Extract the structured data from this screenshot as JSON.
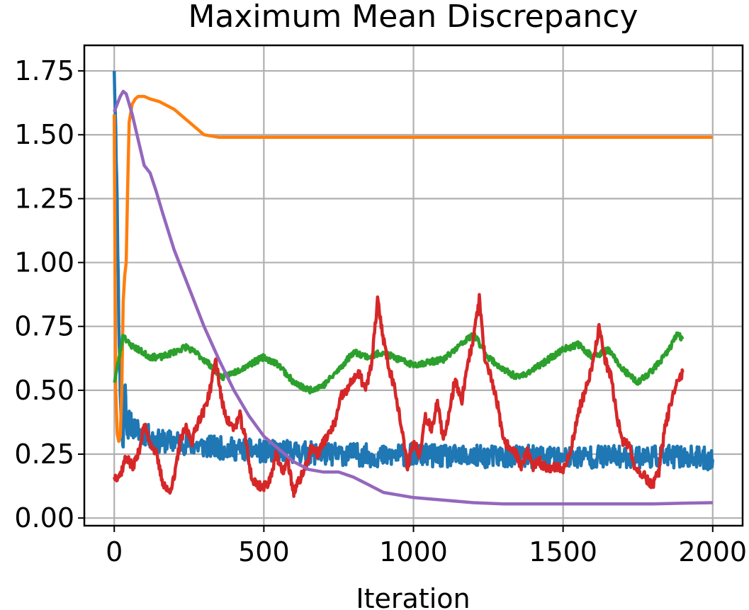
{
  "chart_data": {
    "type": "line",
    "title": "Maximum Mean Discrepancy",
    "xlabel": "Iteration",
    "ylabel": "",
    "xlim": [
      -100,
      2100
    ],
    "ylim": [
      -0.03,
      1.85
    ],
    "xticks": [
      0,
      500,
      1000,
      1500,
      2000
    ],
    "xtick_labels": [
      "0",
      "500",
      "1000",
      "1500",
      "2000"
    ],
    "yticks": [
      0.0,
      0.25,
      0.5,
      0.75,
      1.0,
      1.25,
      1.5,
      1.75
    ],
    "ytick_labels": [
      "0.00",
      "0.25",
      "0.50",
      "0.75",
      "1.00",
      "1.25",
      "1.50",
      "1.75"
    ],
    "grid": true,
    "series": [
      {
        "color": "#1f77b4",
        "noise": 0.045,
        "seed": 11,
        "points": [
          [
            0,
            1.75
          ],
          [
            5,
            1.55
          ],
          [
            10,
            1.2
          ],
          [
            15,
            0.8
          ],
          [
            20,
            0.5
          ],
          [
            25,
            0.32
          ],
          [
            30,
            0.28
          ],
          [
            35,
            0.55
          ],
          [
            40,
            0.4
          ],
          [
            45,
            0.34
          ],
          [
            50,
            0.38
          ],
          [
            60,
            0.36
          ],
          [
            80,
            0.34
          ],
          [
            100,
            0.33
          ],
          [
            150,
            0.3
          ],
          [
            200,
            0.3
          ],
          [
            300,
            0.28
          ],
          [
            400,
            0.27
          ],
          [
            500,
            0.26
          ],
          [
            600,
            0.26
          ],
          [
            700,
            0.25
          ],
          [
            800,
            0.25
          ],
          [
            900,
            0.24
          ],
          [
            1000,
            0.25
          ],
          [
            1100,
            0.24
          ],
          [
            1200,
            0.24
          ],
          [
            1300,
            0.24
          ],
          [
            1400,
            0.24
          ],
          [
            1500,
            0.24
          ],
          [
            1600,
            0.24
          ],
          [
            1700,
            0.24
          ],
          [
            1800,
            0.24
          ],
          [
            1900,
            0.24
          ],
          [
            2000,
            0.23
          ]
        ]
      },
      {
        "color": "#ff7f0e",
        "noise": 0.0,
        "seed": 0,
        "points": [
          [
            0,
            1.58
          ],
          [
            5,
            0.5
          ],
          [
            10,
            0.33
          ],
          [
            15,
            0.3
          ],
          [
            20,
            0.32
          ],
          [
            25,
            0.5
          ],
          [
            30,
            0.85
          ],
          [
            35,
            0.95
          ],
          [
            40,
            1.0
          ],
          [
            45,
            1.3
          ],
          [
            50,
            1.55
          ],
          [
            60,
            1.62
          ],
          [
            70,
            1.64
          ],
          [
            80,
            1.65
          ],
          [
            100,
            1.65
          ],
          [
            120,
            1.64
          ],
          [
            150,
            1.63
          ],
          [
            200,
            1.6
          ],
          [
            250,
            1.55
          ],
          [
            300,
            1.5
          ],
          [
            350,
            1.49
          ],
          [
            500,
            1.49
          ],
          [
            1000,
            1.49
          ],
          [
            1500,
            1.49
          ],
          [
            2000,
            1.49
          ]
        ]
      },
      {
        "color": "#2ca02c",
        "noise": 0.012,
        "seed": 23,
        "points": [
          [
            0,
            0.53
          ],
          [
            20,
            0.65
          ],
          [
            30,
            0.72
          ],
          [
            50,
            0.68
          ],
          [
            80,
            0.66
          ],
          [
            120,
            0.63
          ],
          [
            160,
            0.63
          ],
          [
            200,
            0.65
          ],
          [
            240,
            0.67
          ],
          [
            280,
            0.64
          ],
          [
            320,
            0.6
          ],
          [
            360,
            0.55
          ],
          [
            400,
            0.57
          ],
          [
            450,
            0.6
          ],
          [
            500,
            0.63
          ],
          [
            550,
            0.6
          ],
          [
            600,
            0.53
          ],
          [
            650,
            0.5
          ],
          [
            700,
            0.52
          ],
          [
            750,
            0.58
          ],
          [
            800,
            0.65
          ],
          [
            850,
            0.63
          ],
          [
            900,
            0.65
          ],
          [
            950,
            0.62
          ],
          [
            1000,
            0.6
          ],
          [
            1050,
            0.61
          ],
          [
            1100,
            0.62
          ],
          [
            1150,
            0.67
          ],
          [
            1200,
            0.72
          ],
          [
            1250,
            0.63
          ],
          [
            1300,
            0.58
          ],
          [
            1350,
            0.55
          ],
          [
            1400,
            0.58
          ],
          [
            1450,
            0.62
          ],
          [
            1500,
            0.66
          ],
          [
            1550,
            0.68
          ],
          [
            1600,
            0.63
          ],
          [
            1650,
            0.66
          ],
          [
            1700,
            0.58
          ],
          [
            1750,
            0.53
          ],
          [
            1800,
            0.58
          ],
          [
            1850,
            0.65
          ],
          [
            1880,
            0.72
          ],
          [
            1900,
            0.7
          ]
        ]
      },
      {
        "color": "#d62728",
        "noise": 0.02,
        "seed": 37,
        "points": [
          [
            0,
            0.16
          ],
          [
            20,
            0.17
          ],
          [
            40,
            0.24
          ],
          [
            60,
            0.2
          ],
          [
            80,
            0.25
          ],
          [
            100,
            0.36
          ],
          [
            120,
            0.3
          ],
          [
            140,
            0.25
          ],
          [
            160,
            0.15
          ],
          [
            180,
            0.1
          ],
          [
            200,
            0.15
          ],
          [
            220,
            0.3
          ],
          [
            240,
            0.35
          ],
          [
            260,
            0.3
          ],
          [
            280,
            0.38
          ],
          [
            300,
            0.42
          ],
          [
            320,
            0.5
          ],
          [
            340,
            0.62
          ],
          [
            360,
            0.45
          ],
          [
            380,
            0.38
          ],
          [
            400,
            0.35
          ],
          [
            420,
            0.4
          ],
          [
            440,
            0.3
          ],
          [
            460,
            0.15
          ],
          [
            480,
            0.13
          ],
          [
            500,
            0.12
          ],
          [
            520,
            0.15
          ],
          [
            540,
            0.25
          ],
          [
            560,
            0.18
          ],
          [
            580,
            0.22
          ],
          [
            600,
            0.1
          ],
          [
            620,
            0.15
          ],
          [
            640,
            0.2
          ],
          [
            660,
            0.28
          ],
          [
            680,
            0.25
          ],
          [
            700,
            0.3
          ],
          [
            720,
            0.33
          ],
          [
            740,
            0.38
          ],
          [
            760,
            0.48
          ],
          [
            780,
            0.5
          ],
          [
            800,
            0.55
          ],
          [
            820,
            0.56
          ],
          [
            840,
            0.5
          ],
          [
            860,
            0.6
          ],
          [
            880,
            0.85
          ],
          [
            900,
            0.7
          ],
          [
            920,
            0.58
          ],
          [
            940,
            0.5
          ],
          [
            960,
            0.35
          ],
          [
            980,
            0.2
          ],
          [
            1000,
            0.3
          ],
          [
            1020,
            0.25
          ],
          [
            1040,
            0.4
          ],
          [
            1060,
            0.35
          ],
          [
            1080,
            0.45
          ],
          [
            1100,
            0.3
          ],
          [
            1120,
            0.42
          ],
          [
            1140,
            0.55
          ],
          [
            1160,
            0.45
          ],
          [
            1180,
            0.6
          ],
          [
            1200,
            0.7
          ],
          [
            1220,
            0.86
          ],
          [
            1240,
            0.6
          ],
          [
            1260,
            0.55
          ],
          [
            1280,
            0.45
          ],
          [
            1300,
            0.3
          ],
          [
            1320,
            0.28
          ],
          [
            1340,
            0.26
          ],
          [
            1360,
            0.2
          ],
          [
            1380,
            0.26
          ],
          [
            1400,
            0.2
          ],
          [
            1420,
            0.22
          ],
          [
            1440,
            0.2
          ],
          [
            1460,
            0.2
          ],
          [
            1480,
            0.2
          ],
          [
            1500,
            0.19
          ],
          [
            1520,
            0.24
          ],
          [
            1540,
            0.35
          ],
          [
            1560,
            0.45
          ],
          [
            1580,
            0.52
          ],
          [
            1600,
            0.6
          ],
          [
            1620,
            0.75
          ],
          [
            1640,
            0.62
          ],
          [
            1660,
            0.55
          ],
          [
            1680,
            0.4
          ],
          [
            1700,
            0.3
          ],
          [
            1720,
            0.28
          ],
          [
            1740,
            0.2
          ],
          [
            1760,
            0.18
          ],
          [
            1780,
            0.15
          ],
          [
            1800,
            0.13
          ],
          [
            1820,
            0.18
          ],
          [
            1840,
            0.35
          ],
          [
            1860,
            0.45
          ],
          [
            1880,
            0.52
          ],
          [
            1900,
            0.57
          ]
        ]
      },
      {
        "color": "#9467bd",
        "noise": 0.0,
        "seed": 0,
        "points": [
          [
            0,
            1.59
          ],
          [
            10,
            1.62
          ],
          [
            20,
            1.65
          ],
          [
            30,
            1.67
          ],
          [
            40,
            1.66
          ],
          [
            60,
            1.58
          ],
          [
            80,
            1.48
          ],
          [
            100,
            1.38
          ],
          [
            120,
            1.35
          ],
          [
            140,
            1.28
          ],
          [
            160,
            1.2
          ],
          [
            200,
            1.05
          ],
          [
            250,
            0.9
          ],
          [
            300,
            0.75
          ],
          [
            350,
            0.62
          ],
          [
            400,
            0.5
          ],
          [
            450,
            0.4
          ],
          [
            500,
            0.32
          ],
          [
            550,
            0.27
          ],
          [
            600,
            0.22
          ],
          [
            650,
            0.19
          ],
          [
            700,
            0.18
          ],
          [
            720,
            0.18
          ],
          [
            750,
            0.18
          ],
          [
            800,
            0.16
          ],
          [
            850,
            0.13
          ],
          [
            900,
            0.1
          ],
          [
            950,
            0.09
          ],
          [
            1000,
            0.08
          ],
          [
            1100,
            0.07
          ],
          [
            1200,
            0.06
          ],
          [
            1300,
            0.055
          ],
          [
            1400,
            0.055
          ],
          [
            1500,
            0.055
          ],
          [
            1600,
            0.055
          ],
          [
            1700,
            0.055
          ],
          [
            1800,
            0.055
          ],
          [
            1900,
            0.058
          ],
          [
            2000,
            0.06
          ]
        ]
      }
    ]
  }
}
